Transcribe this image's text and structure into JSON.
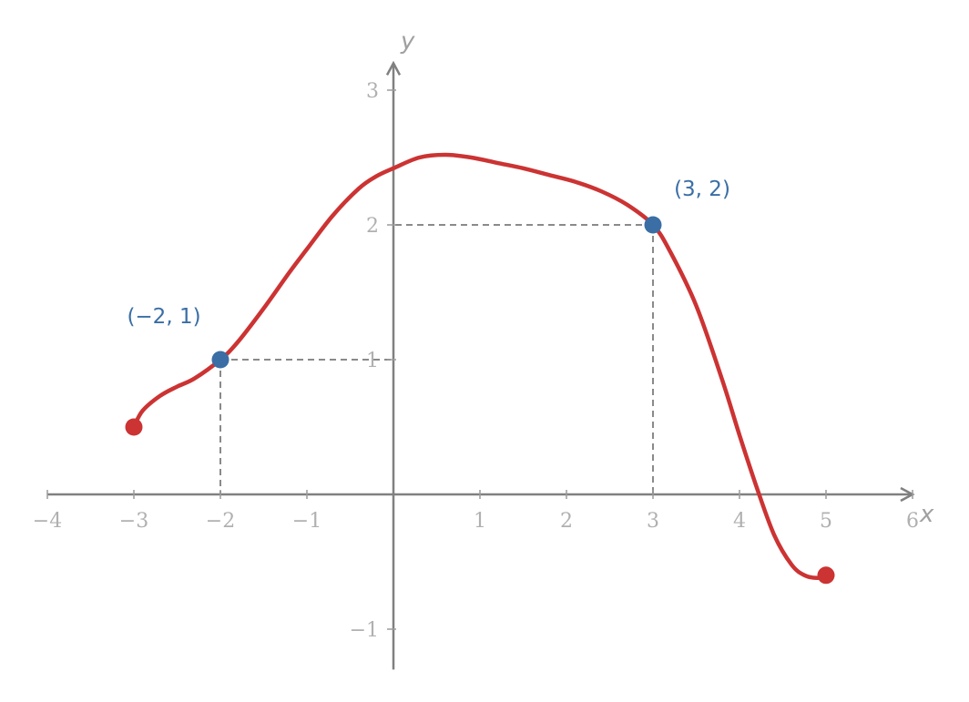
{
  "chart_data": {
    "type": "line",
    "xlabel": "x",
    "ylabel": "y",
    "xlim": [
      -4,
      6
    ],
    "ylim": [
      -1.3,
      3.2
    ],
    "x_ticks": [
      -4,
      -3,
      -2,
      -1,
      1,
      2,
      3,
      4,
      5,
      6
    ],
    "x_tick_labels": [
      "−4",
      "−3",
      "−2",
      "−1",
      "1",
      "2",
      "3",
      "4",
      "5",
      "6"
    ],
    "y_ticks": [
      -1,
      1,
      2,
      3
    ],
    "y_tick_labels": [
      "−1",
      "1",
      "2",
      "3"
    ],
    "grid": false,
    "series": [
      {
        "color": "#cc3333",
        "x": [
          -3,
          -2.9,
          -2.7,
          -2.5,
          -2.3,
          -2,
          -1.8,
          -1.5,
          -1.2,
          -1,
          -0.7,
          -0.4,
          -0.2,
          0,
          0.3,
          0.6,
          0.9,
          1.2,
          1.5,
          1.8,
          2.1,
          2.4,
          2.7,
          3,
          3.2,
          3.5,
          3.8,
          4,
          4.2,
          4.4,
          4.6,
          4.75,
          4.9,
          5
        ],
        "y": [
          0.5,
          0.62,
          0.73,
          0.8,
          0.86,
          1,
          1.13,
          1.38,
          1.65,
          1.82,
          2.07,
          2.27,
          2.36,
          2.42,
          2.5,
          2.52,
          2.5,
          2.46,
          2.42,
          2.37,
          2.32,
          2.25,
          2.15,
          2,
          1.8,
          1.4,
          0.85,
          0.44,
          0.05,
          -0.3,
          -0.52,
          -0.6,
          -0.62,
          -0.6
        ]
      }
    ],
    "endpoints": [
      {
        "x": -3,
        "y": 0.5,
        "color": "#cc3333"
      },
      {
        "x": 5,
        "y": -0.6,
        "color": "#cc3333"
      }
    ],
    "marked_points": [
      {
        "x": -2,
        "y": 1,
        "label": "(−2, 1)",
        "color": "#3a6ea5"
      },
      {
        "x": 3,
        "y": 2,
        "label": "(3, 2)",
        "color": "#3a6ea5"
      }
    ]
  }
}
